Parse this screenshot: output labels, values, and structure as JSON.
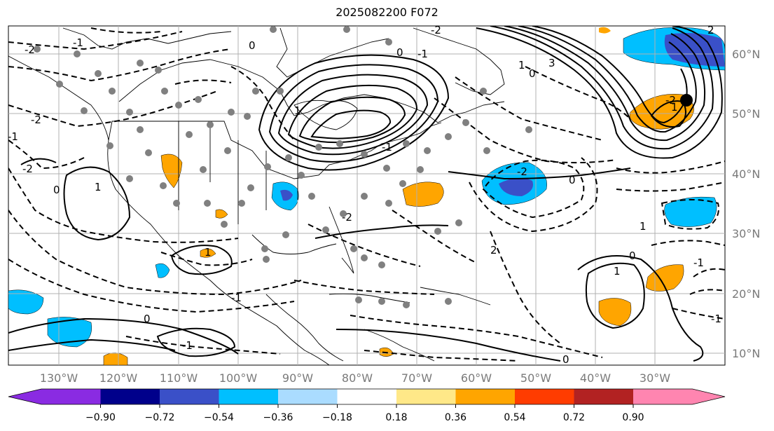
{
  "title": "2025082200 F072",
  "axes": {
    "lon_ticks": [
      "130°W",
      "120°W",
      "110°W",
      "100°W",
      "90°W",
      "80°W",
      "70°W",
      "60°W",
      "50°W",
      "40°W",
      "30°W"
    ],
    "lat_ticks": [
      "60°N",
      "50°N",
      "40°N",
      "30°N",
      "20°N",
      "10°N"
    ]
  },
  "colorbar": {
    "labels": [
      "−0.90",
      "−0.72",
      "−0.54",
      "−0.36",
      "−0.18",
      "0.18",
      "0.36",
      "0.54",
      "0.72",
      "0.90"
    ],
    "colors": [
      "#8a2be2",
      "#00008b",
      "#3a50c8",
      "#00bfff",
      "#aadcff",
      "#ffffff",
      "#ffe888",
      "#ffa500",
      "#ff3c00",
      "#b22222",
      "#ff85b0"
    ]
  },
  "contour_labels": [
    "-2",
    "-2",
    "-1",
    "-2",
    "0",
    "1",
    "-1",
    "0",
    "1",
    "-1",
    "0",
    "-2",
    "-2",
    "1",
    "2",
    "0",
    "1",
    "1",
    "0",
    "-2",
    "0",
    "-1",
    "2",
    "3",
    "0",
    "1",
    "-2",
    "-1",
    "-1",
    "0",
    "-1",
    "1",
    "-1"
  ],
  "colors": {
    "station": "#808080",
    "grid": "#b0b0b0",
    "coast": "#000000"
  }
}
